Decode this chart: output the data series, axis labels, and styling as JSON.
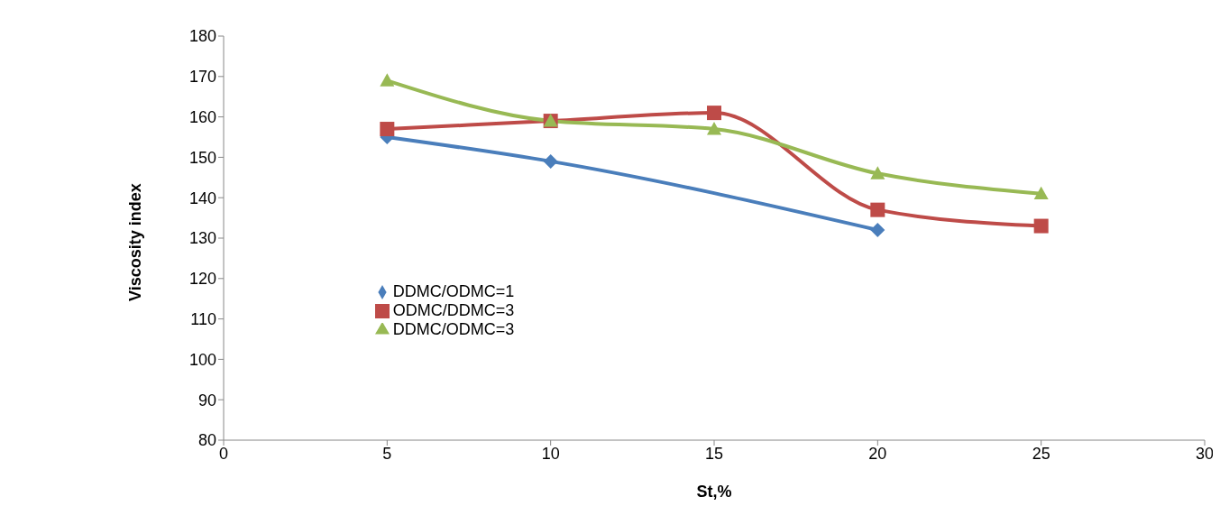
{
  "chart_data": {
    "type": "line",
    "xlabel": "St,%",
    "ylabel": "Viscosity index",
    "x": [
      5,
      10,
      15,
      20,
      25
    ],
    "series": [
      {
        "name": "DDMC/ODMC=1",
        "color": "#4a7ebb",
        "marker": "diamond",
        "values": [
          155,
          149,
          null,
          132,
          null
        ]
      },
      {
        "name": "ODMC/DDMC=3",
        "color": "#be4b48",
        "marker": "square",
        "values": [
          157,
          159,
          161,
          137,
          133
        ]
      },
      {
        "name": "DDMC/ODMC=3",
        "color": "#98b954",
        "marker": "triangle",
        "values": [
          169,
          159,
          157,
          146,
          141
        ]
      }
    ],
    "xlim": [
      0,
      30
    ],
    "xticks": [
      0,
      5,
      10,
      15,
      20,
      25,
      30
    ],
    "ylim": [
      80,
      180
    ],
    "yticks": [
      80,
      90,
      100,
      110,
      120,
      130,
      140,
      150,
      160,
      170,
      180
    ],
    "grid": false,
    "legend": "left",
    "line_style": "solid"
  }
}
